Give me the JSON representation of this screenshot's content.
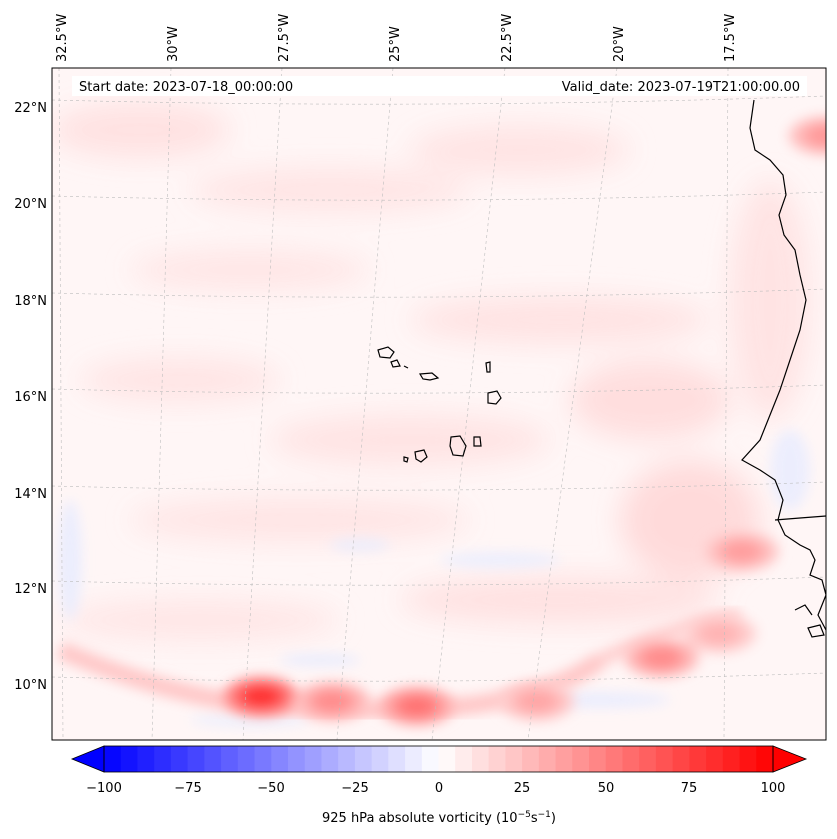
{
  "header": {
    "start_date": "Start date: 2023-07-18_00:00:00",
    "valid_date": "Valid_date: 2023-07-19T21:00:00.00"
  },
  "axes": {
    "lon_labels": [
      "32.5°W",
      "30°W",
      "27.5°W",
      "25°W",
      "22.5°W",
      "20°W",
      "17.5°W"
    ],
    "lat_labels": [
      "22°N",
      "20°N",
      "18°N",
      "16°N",
      "14°N",
      "12°N",
      "10°N"
    ]
  },
  "colorbar": {
    "ticks": [
      "−100",
      "−75",
      "−50",
      "−25",
      "0",
      "25",
      "50",
      "75",
      "100"
    ],
    "label_main": "925 hPa absolute vorticity (10",
    "label_exp1": "−5",
    "label_mid": "s",
    "label_exp2": "−1",
    "label_end": ")",
    "colors": {
      "neg": "#0000ff",
      "mid": "#ffffff",
      "pos": "#ff0000"
    }
  },
  "field": {
    "cells": [
      {
        "lon": -17.5,
        "lat": 12.7,
        "value": 38
      },
      {
        "lon": -18.0,
        "lat": 11.0,
        "value": 30
      },
      {
        "lon": -19.3,
        "lat": 10.5,
        "value": 45
      },
      {
        "lon": -28.3,
        "lat": 9.7,
        "value": 80
      },
      {
        "lon": -26.7,
        "lat": 9.6,
        "value": 45
      },
      {
        "lon": -24.8,
        "lat": 9.5,
        "value": 55
      },
      {
        "lon": -22.1,
        "lat": 9.6,
        "value": 35
      },
      {
        "lon": -15.6,
        "lat": 21.3,
        "value": 40
      }
    ]
  }
}
